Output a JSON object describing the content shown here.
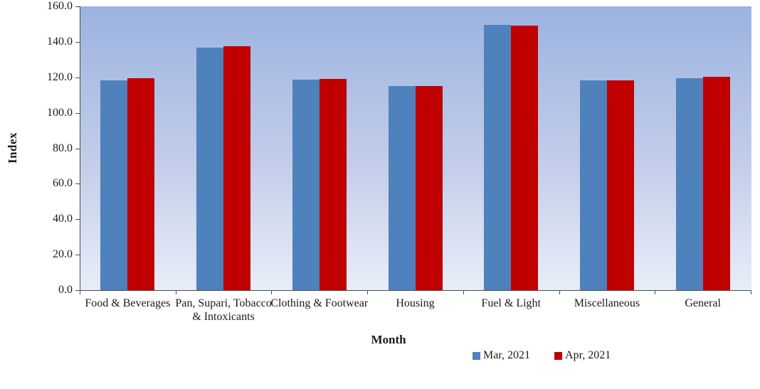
{
  "chart_data": {
    "type": "bar",
    "title": "",
    "ylabel": "Index",
    "xlabel": "Month",
    "ylim": [
      0,
      160
    ],
    "ytick_labels": [
      "0.0",
      "20.0",
      "40.0",
      "60.0",
      "80.0",
      "100.0",
      "120.0",
      "140.0",
      "160.0"
    ],
    "grid": false,
    "legend_position": "bottom-right",
    "categories": [
      "Food & Beverages",
      "Pan, Supari, Tobacco\n& Intoxicants",
      "Clothing & Footwear",
      "Housing",
      "Fuel & Light",
      "Miscellaneous",
      "General"
    ],
    "series": [
      {
        "name": "Mar, 2021",
        "color": "#4F81BD",
        "values": [
          118.2,
          136.7,
          118.7,
          115.2,
          149.5,
          118.2,
          119.5
        ]
      },
      {
        "name": "Apr, 2021",
        "color": "#C00000",
        "values": [
          119.5,
          137.6,
          118.9,
          115.2,
          149.0,
          118.4,
          120.3
        ]
      }
    ],
    "colors": {
      "plot_bg_top": "#9BB3E0",
      "plot_bg_bottom": "#E7EDF8",
      "axis": "#4d4d4d",
      "text": "#1a1a1a"
    }
  }
}
